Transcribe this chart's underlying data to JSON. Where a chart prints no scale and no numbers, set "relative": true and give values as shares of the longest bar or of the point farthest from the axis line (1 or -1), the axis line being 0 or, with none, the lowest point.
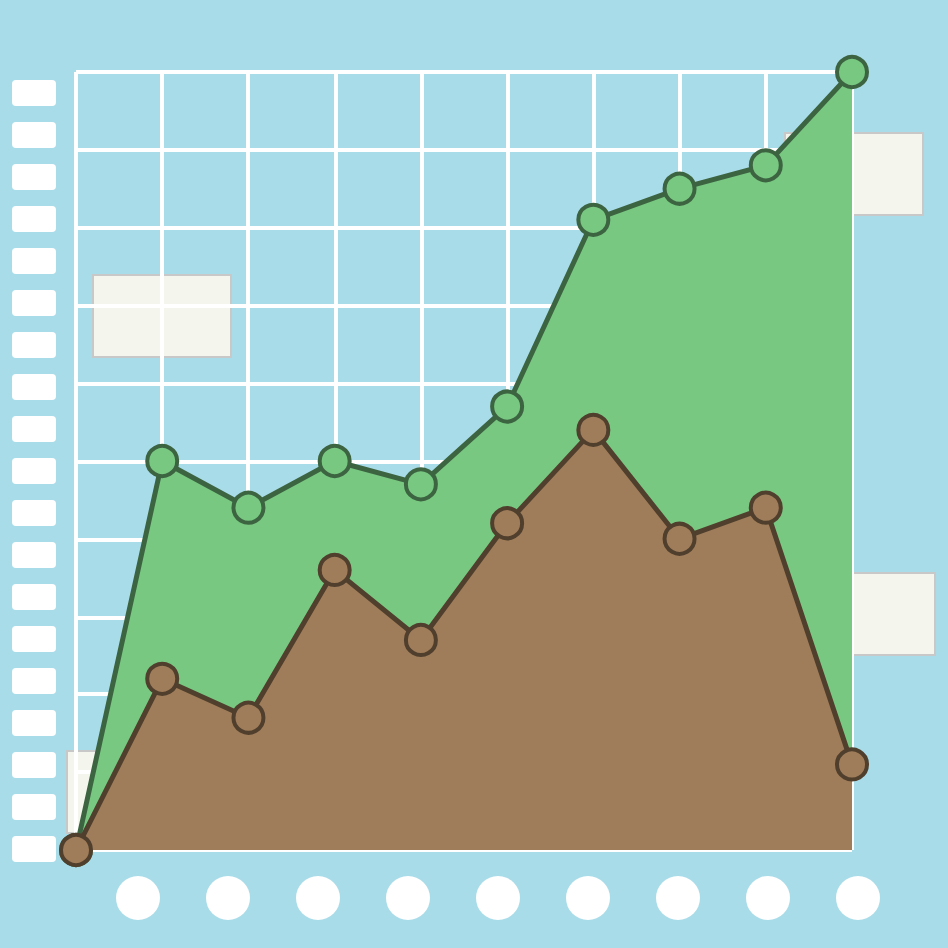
{
  "chart_data": {
    "type": "area",
    "relative": true,
    "grid": true,
    "marker": "circle",
    "categories": [
      null,
      null,
      null,
      null,
      null,
      null,
      null,
      null,
      null,
      null
    ],
    "series": [
      {
        "color": "#78c882",
        "values": [
          0,
          0.5,
          0.44,
          0.5,
          0.47,
          0.57,
          0.81,
          0.85,
          0.88,
          1
        ]
      },
      {
        "color": "#a07d5a",
        "values": [
          0,
          0.22,
          0.17,
          0.36,
          0.27,
          0.42,
          0.54,
          0.4,
          0.44,
          0.11
        ]
      }
    ]
  }
}
